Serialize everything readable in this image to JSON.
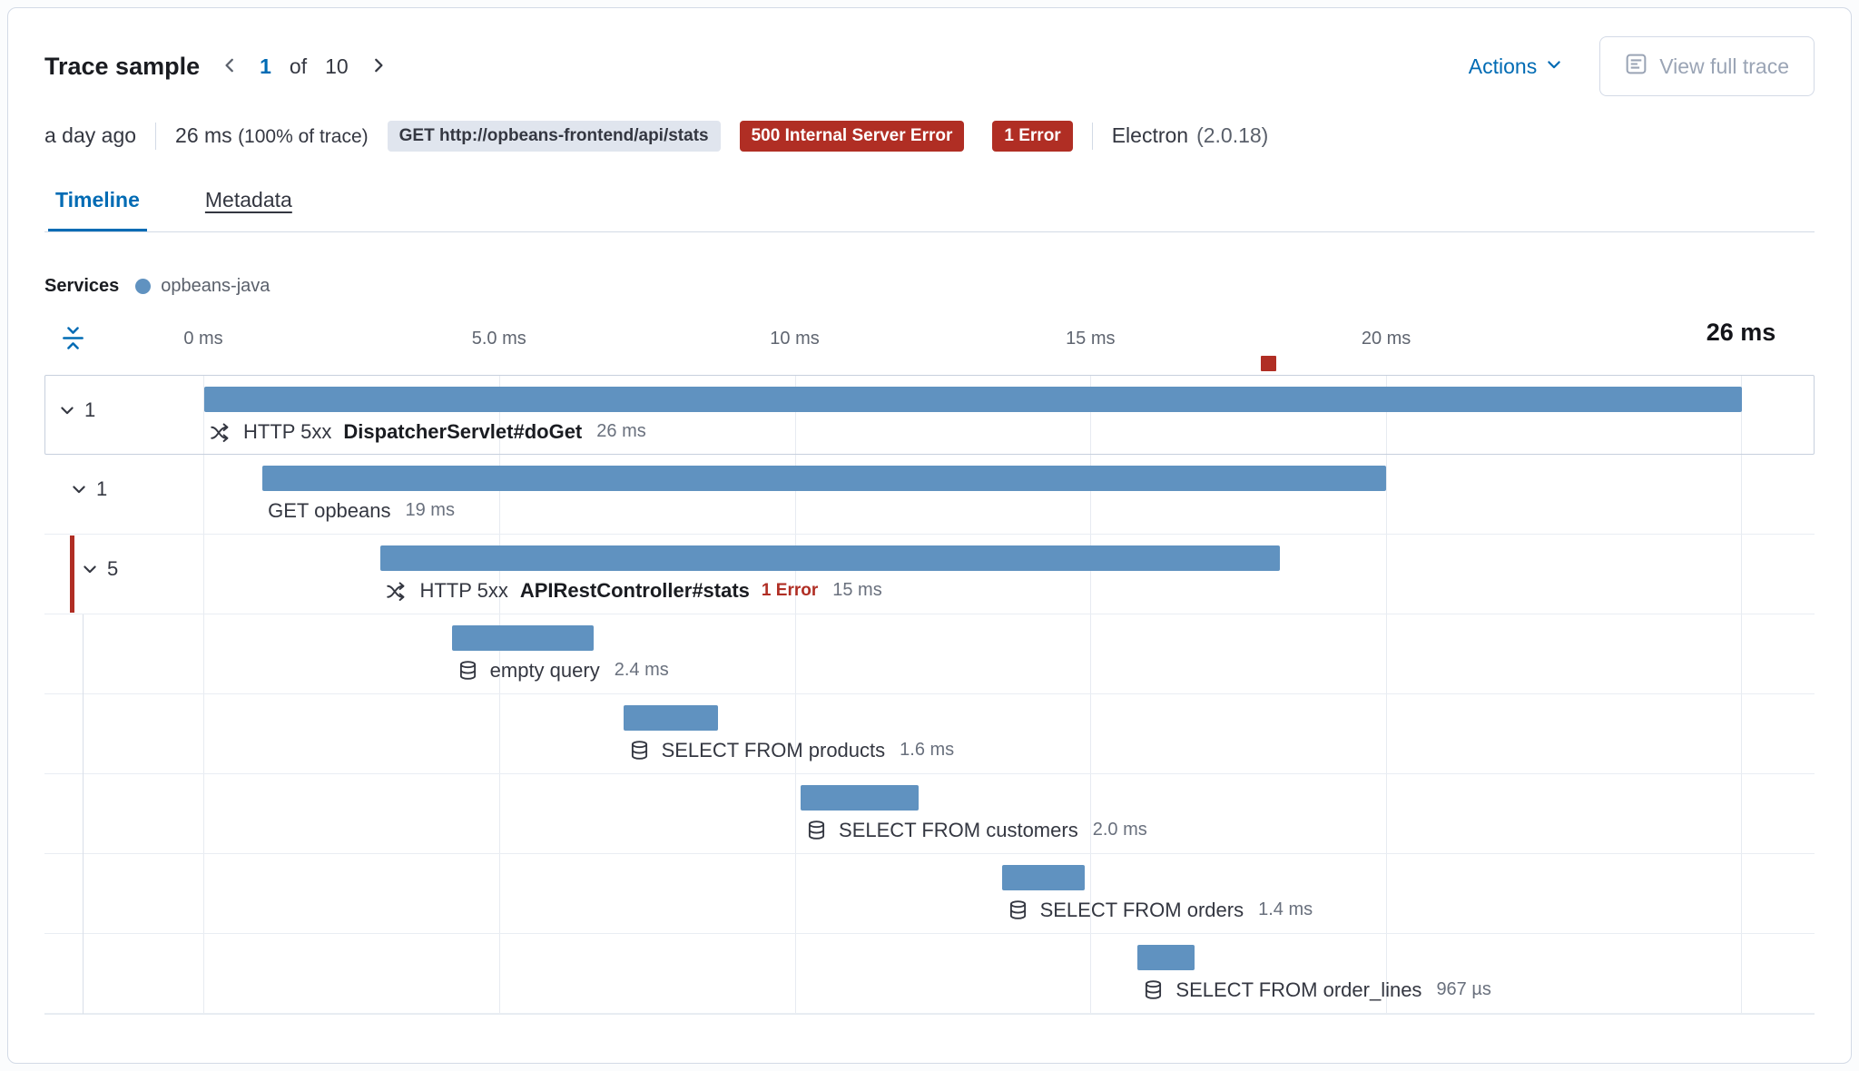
{
  "header": {
    "title": "Trace sample",
    "pagination": {
      "current": "1",
      "of_label": "of",
      "total": "10"
    },
    "actions_label": "Actions",
    "view_full_trace_label": "View full trace"
  },
  "summary": {
    "time_ago": "a day ago",
    "duration": "26 ms",
    "duration_pct": "(100% of trace)",
    "url_badge": "GET http://opbeans-frontend/api/stats",
    "status_badge": "500 Internal Server Error",
    "error_badge": "1 Error",
    "agent_name": "Electron",
    "agent_version": "(2.0.18)"
  },
  "tabs": [
    {
      "label": "Timeline",
      "active": true
    },
    {
      "label": "Metadata",
      "active": false
    }
  ],
  "legend": {
    "title": "Services",
    "items": [
      {
        "label": "opbeans-java",
        "color": "#6092C0"
      }
    ]
  },
  "icons": {
    "prev": "chevron-left-icon",
    "next": "chevron-right-icon",
    "actions_caret": "chevron-down-icon",
    "view_full_trace": "trace-document-icon",
    "collapse_axis": "fold-icon",
    "row_toggle": "chevron-down-icon",
    "transaction": "transaction-merge-icon",
    "db": "database-icon",
    "legend_dot": "service-color-dot"
  },
  "colors": {
    "accent_blue": "#006BB4",
    "bar_blue": "#6092C0",
    "danger_red": "#b02e24",
    "badge_gray_bg": "#e0e5ee"
  },
  "chart_data": {
    "type": "waterfall",
    "x_unit": "ms",
    "x_max": 26,
    "grid": true,
    "ticks": [
      {
        "label": "0 ms",
        "ms": 0
      },
      {
        "label": "5.0 ms",
        "ms": 5
      },
      {
        "label": "10 ms",
        "ms": 10
      },
      {
        "label": "15 ms",
        "ms": 15
      },
      {
        "label": "20 ms",
        "ms": 20
      },
      {
        "label": "26 ms",
        "ms": 26,
        "emphasis": true
      }
    ],
    "error_marker_ms": 18,
    "rows": [
      {
        "depth": 0,
        "toggle": "1",
        "selected": true,
        "icon": "transaction",
        "prefix": "HTTP 5xx",
        "name": "DispatcherServlet#doGet",
        "name_bold": true,
        "duration": "26 ms",
        "start_ms": 0,
        "duration_ms": 26
      },
      {
        "depth": 1,
        "toggle": "1",
        "name": "GET opbeans",
        "duration": "19 ms",
        "start_ms": 1.0,
        "duration_ms": 19
      },
      {
        "depth": 2,
        "toggle": "5",
        "error": true,
        "icon": "transaction",
        "prefix": "HTTP 5xx",
        "name": "APIRestController#stats",
        "name_bold": true,
        "error_label": "1 Error",
        "duration": "15 ms",
        "start_ms": 3.0,
        "duration_ms": 15.2
      },
      {
        "depth": 3,
        "icon": "database",
        "name": "empty query",
        "duration": "2.4 ms",
        "start_ms": 4.2,
        "duration_ms": 2.4
      },
      {
        "depth": 3,
        "icon": "database",
        "name": "SELECT FROM products",
        "duration": "1.6 ms",
        "start_ms": 7.1,
        "duration_ms": 1.6
      },
      {
        "depth": 3,
        "icon": "database",
        "name": "SELECT FROM customers",
        "duration": "2.0 ms",
        "start_ms": 10.1,
        "duration_ms": 2.0
      },
      {
        "depth": 3,
        "icon": "database",
        "name": "SELECT FROM orders",
        "duration": "1.4 ms",
        "start_ms": 13.5,
        "duration_ms": 1.4
      },
      {
        "depth": 3,
        "icon": "database",
        "name": "SELECT FROM order_lines",
        "duration": "967 µs",
        "start_ms": 15.8,
        "duration_ms": 0.967
      }
    ]
  }
}
